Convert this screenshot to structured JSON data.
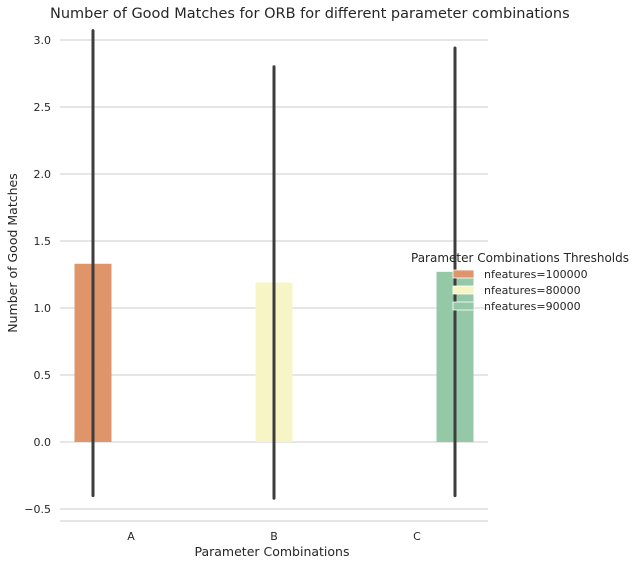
{
  "chart_data": {
    "type": "bar",
    "title": "Number of Good Matches for ORB for different parameter combinations",
    "xlabel": "Parameter Combinations",
    "ylabel": "Number of Good Matches",
    "categories": [
      "A",
      "B",
      "C"
    ],
    "ylim": [
      -0.58,
      3.1
    ],
    "yticks": [
      -0.5,
      0.0,
      0.5,
      1.0,
      1.5,
      2.0,
      2.5,
      3.0
    ],
    "ytick_labels": [
      "−0.5",
      "0.0",
      "0.5",
      "1.0",
      "1.5",
      "2.0",
      "2.5",
      "3.0"
    ],
    "grid": true,
    "legend_placement": "center-right",
    "legend_title": "Parameter Combinations Thresholds",
    "series": [
      {
        "name": "nfeatures=100000",
        "color": "#e0946a",
        "values": [
          1.33,
          null,
          null
        ],
        "error_low": [
          -0.4,
          null,
          null
        ],
        "error_high": [
          3.07,
          null,
          null
        ]
      },
      {
        "name": "nfeatures=80000",
        "color": "#f7f5c5",
        "values": [
          null,
          1.19,
          null
        ],
        "error_low": [
          null,
          -0.42,
          null
        ],
        "error_high": [
          null,
          2.8,
          null
        ]
      },
      {
        "name": "nfeatures=90000",
        "color": "#95c8a6",
        "values": [
          null,
          null,
          1.27
        ],
        "error_low": [
          null,
          null,
          -0.4
        ],
        "error_high": [
          null,
          null,
          2.94
        ]
      }
    ]
  }
}
